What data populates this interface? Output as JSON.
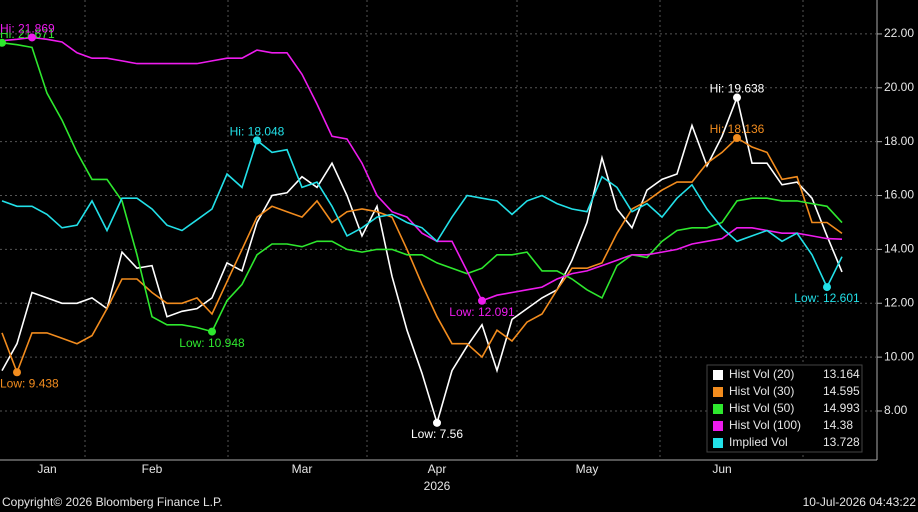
{
  "chart_data": {
    "type": "line",
    "categories": [
      null,
      null,
      null,
      "Jan",
      null,
      null,
      null,
      null,
      null,
      null,
      "Feb",
      null,
      null,
      null,
      null,
      null,
      null,
      null,
      null,
      null,
      "Mar",
      null,
      null,
      null,
      null,
      null,
      null,
      null,
      null,
      "Apr",
      null,
      null,
      null,
      null,
      null,
      null,
      null,
      null,
      null,
      "May",
      null,
      null,
      null,
      null,
      null,
      null,
      null,
      null,
      "Jun",
      null,
      null,
      null,
      null,
      null,
      null,
      null,
      null
    ],
    "x_label": "2026",
    "ylim": [
      6.18,
      23.26
    ],
    "yticks": [
      {
        "value": 8,
        "label": "8.00"
      },
      {
        "value": 10,
        "label": "10.00"
      },
      {
        "value": 12,
        "label": "12.00"
      },
      {
        "value": 14,
        "label": "14.00"
      },
      {
        "value": 16,
        "label": "16.00"
      },
      {
        "value": 18,
        "label": "18.00"
      },
      {
        "value": 20,
        "label": "20.00"
      },
      {
        "value": 22,
        "label": "22.00"
      }
    ],
    "grid": true,
    "legend": "lower right",
    "series": [
      {
        "name": "Hist Vol (20)",
        "color": "#ffffff",
        "annotations": [
          "Hi: 19.638",
          "Low: 7.56"
        ],
        "values": [
          9.5,
          10.5,
          12.4,
          12.2,
          12.0,
          12.0,
          12.2,
          11.8,
          13.9,
          13.3,
          13.4,
          11.5,
          11.7,
          11.8,
          12.2,
          13.5,
          13.2,
          15.0,
          16.0,
          16.1,
          16.7,
          16.3,
          17.2,
          16.0,
          14.5,
          15.6,
          13.0,
          11.0,
          9.4,
          7.56,
          9.5,
          10.4,
          11.2,
          9.5,
          11.4,
          11.8,
          12.2,
          12.5,
          13.6,
          15.0,
          17.4,
          15.5,
          14.8,
          16.2,
          16.6,
          16.8,
          18.6,
          17.1,
          18.2,
          19.638,
          17.2,
          17.2,
          16.4,
          16.5,
          15.9,
          14.5,
          13.164
        ]
      },
      {
        "name": "Hist Vol (30)",
        "color": "#f28c1e",
        "annotations": [
          "Hi: 18.136",
          "Low: 9.438"
        ],
        "values": [
          10.9,
          9.438,
          10.9,
          10.9,
          10.7,
          10.5,
          10.8,
          11.8,
          12.9,
          12.9,
          12.4,
          12.0,
          12.0,
          12.2,
          11.6,
          12.8,
          14.0,
          15.2,
          15.6,
          15.4,
          15.2,
          15.8,
          15.0,
          15.4,
          15.5,
          15.4,
          15.2,
          14.0,
          12.7,
          11.5,
          10.5,
          10.5,
          10.0,
          11.0,
          10.6,
          11.3,
          11.6,
          12.5,
          13.3,
          13.3,
          13.5,
          14.6,
          15.5,
          15.8,
          16.2,
          16.5,
          16.5,
          17.2,
          17.6,
          18.136,
          17.8,
          17.6,
          16.6,
          16.7,
          15.0,
          15.0,
          14.595
        ]
      },
      {
        "name": "Hist Vol (50)",
        "color": "#2ee82e",
        "annotations": [
          "Hi: 21.671",
          "Low: 10.948"
        ],
        "values": [
          21.671,
          21.6,
          21.5,
          19.8,
          18.8,
          17.6,
          16.6,
          16.6,
          15.8,
          13.8,
          11.5,
          11.2,
          11.2,
          11.1,
          10.948,
          12.1,
          12.7,
          13.8,
          14.2,
          14.2,
          14.1,
          14.3,
          14.3,
          14.0,
          13.9,
          14.0,
          14.0,
          13.8,
          13.8,
          13.5,
          13.3,
          13.1,
          13.3,
          13.8,
          13.8,
          13.9,
          13.2,
          13.2,
          12.9,
          12.5,
          12.2,
          13.4,
          13.8,
          13.7,
          14.3,
          14.7,
          14.8,
          14.8,
          15.0,
          15.8,
          15.9,
          15.9,
          15.8,
          15.8,
          15.7,
          15.6,
          14.993
        ]
      },
      {
        "name": "Hist Vol (100)",
        "color": "#ee1cee",
        "annotations": [
          "Hi: 21.869",
          "Low: 12.091"
        ],
        "values": [
          21.75,
          21.8,
          21.869,
          21.8,
          21.7,
          21.3,
          21.1,
          21.1,
          21.0,
          20.9,
          20.9,
          20.9,
          20.9,
          20.9,
          21.0,
          21.1,
          21.1,
          21.4,
          21.3,
          21.3,
          20.5,
          19.4,
          18.2,
          18.1,
          17.2,
          16.0,
          15.4,
          15.2,
          14.6,
          14.3,
          14.3,
          13.2,
          12.091,
          12.3,
          12.4,
          12.5,
          12.6,
          12.9,
          13.1,
          13.2,
          13.4,
          13.6,
          13.8,
          13.8,
          13.9,
          14.0,
          14.2,
          14.3,
          14.4,
          14.8,
          14.8,
          14.7,
          14.6,
          14.6,
          14.5,
          14.4,
          14.38
        ]
      },
      {
        "name": "Implied Vol",
        "color": "#22e0e8",
        "annotations": [
          "Hi: 18.048",
          "Low: 12.601"
        ],
        "values": [
          15.8,
          15.6,
          15.6,
          15.3,
          14.8,
          14.9,
          15.8,
          14.7,
          15.9,
          15.9,
          15.5,
          14.9,
          14.7,
          15.1,
          15.5,
          16.8,
          16.3,
          18.048,
          17.6,
          17.7,
          16.3,
          16.5,
          15.6,
          14.5,
          14.8,
          15.2,
          15.3,
          15.0,
          14.8,
          14.3,
          15.2,
          16.0,
          15.9,
          15.8,
          15.3,
          15.8,
          16.0,
          15.7,
          15.5,
          15.4,
          16.7,
          16.3,
          15.4,
          15.7,
          15.2,
          15.9,
          16.4,
          15.5,
          14.8,
          14.3,
          14.5,
          14.7,
          14.3,
          14.6,
          13.8,
          12.601,
          13.728
        ]
      }
    ]
  },
  "footer": {
    "copyright": "Copyright© 2026 Bloomberg Finance L.P.",
    "timestamp": "10-Jul-2026 04:43:22"
  }
}
